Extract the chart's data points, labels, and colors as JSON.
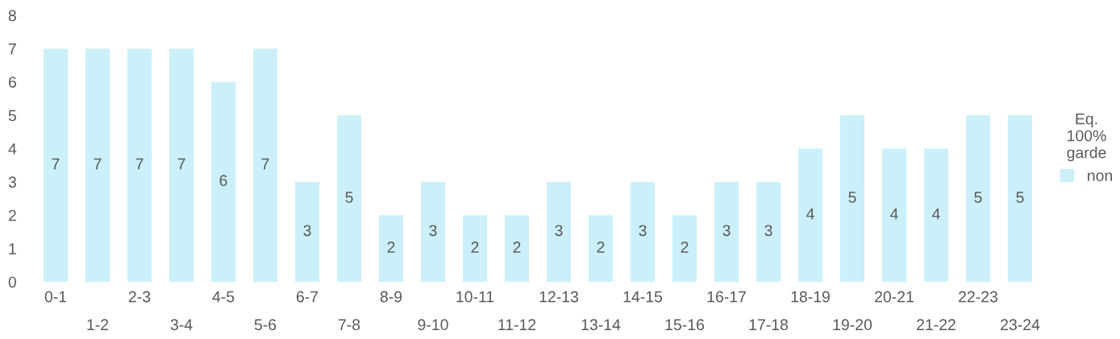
{
  "chart_data": {
    "type": "bar",
    "categories": [
      "0-1",
      "1-2",
      "2-3",
      "3-4",
      "4-5",
      "5-6",
      "6-7",
      "7-8",
      "8-9",
      "9-10",
      "10-11",
      "11-12",
      "12-13",
      "13-14",
      "14-15",
      "15-16",
      "16-17",
      "17-18",
      "18-19",
      "19-20",
      "20-21",
      "21-22",
      "22-23",
      "23-24"
    ],
    "series": [
      {
        "name": "non",
        "color": "#cbf0f9",
        "values": [
          7,
          7,
          7,
          7,
          6,
          7,
          3,
          5,
          2,
          3,
          2,
          2,
          3,
          2,
          3,
          2,
          3,
          3,
          4,
          5,
          4,
          4,
          5,
          5
        ]
      }
    ],
    "ylim": [
      0,
      8
    ],
    "yticks": [
      0,
      1,
      2,
      3,
      4,
      5,
      6,
      7,
      8
    ],
    "data_labels": true,
    "legend": "right",
    "legend_title": "Eq.\n100%\ngarde",
    "grid": false
  }
}
